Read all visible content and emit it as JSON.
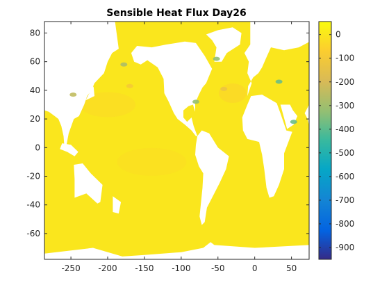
{
  "chart_data": {
    "type": "heatmap",
    "title": "Sensible Heat Flux Day26",
    "xlabel": "",
    "ylabel": "",
    "x_ticks": [
      -250,
      -200,
      -150,
      -100,
      -50,
      0,
      50
    ],
    "y_ticks": [
      80,
      60,
      40,
      20,
      0,
      -20,
      -40,
      -60
    ],
    "xlim": [
      -286,
      74
    ],
    "ylim": [
      -78,
      88
    ],
    "colorbar": {
      "ticks": [
        0,
        -100,
        -200,
        -300,
        -400,
        -500,
        -600,
        -700,
        -800,
        -900
      ],
      "range": [
        -950,
        55
      ],
      "colormap": "parula"
    },
    "hotspots": [
      {
        "lon": -170,
        "lat": 43,
        "value": -90
      },
      {
        "lon": -178,
        "lat": 58,
        "value": -280
      },
      {
        "lon": -247,
        "lat": 37,
        "value": -240
      },
      {
        "lon": -80,
        "lat": 32,
        "value": -320
      },
      {
        "lon": -42,
        "lat": 41,
        "value": -130
      },
      {
        "lon": -52,
        "lat": 62,
        "value": -330
      },
      {
        "lon": 53,
        "lat": 18,
        "value": -380
      },
      {
        "lon": 33,
        "lat": 46,
        "value": -380
      }
    ],
    "background_value": 0
  }
}
